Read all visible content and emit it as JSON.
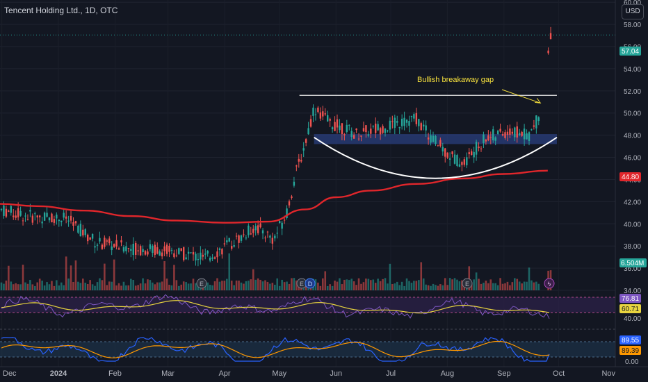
{
  "header": {
    "title": "Tencent Holding Ltd., 1D, OTC",
    "currency": "USD"
  },
  "annotation": {
    "text": "Bullish breakaway gap"
  },
  "price_axis": {
    "ticks": [
      "60.00",
      "58.00",
      "56.00",
      "54.00",
      "52.00",
      "50.00",
      "48.00",
      "46.00",
      "44.00",
      "42.00",
      "40.00",
      "38.00",
      "36.00",
      "34.00"
    ]
  },
  "time_axis": {
    "labels": [
      "Dec",
      "2024",
      "Feb",
      "Mar",
      "Apr",
      "May",
      "Jun",
      "Jul",
      "Aug",
      "Sep",
      "Oct",
      "Nov"
    ]
  },
  "badges": {
    "price": "57.04",
    "ma": "44.80",
    "volume": "6.504M",
    "rsi": "76.81",
    "rsi_ma": "60.71",
    "rsi_level": "40.00",
    "stoch_k": "89.55",
    "stoch_d": "89.39",
    "stoch_level": "0.00"
  },
  "colors": {
    "background": "#131722",
    "up": "#26a69a",
    "down": "#ef5350",
    "ma": "#e0262b",
    "annotation": "#f7e13d",
    "zone": "#2a3f7d",
    "rsi_line": "#7e57c2",
    "rsi_ma": "#e8d43f",
    "stoch_k": "#2962ff",
    "stoch_d": "#ff9800"
  },
  "chart_data": [
    {
      "type": "candlestick",
      "title": "Tencent Holding Ltd., 1D, OTC",
      "ylim": [
        33.5,
        60.2
      ],
      "x_range": [
        "2023-11-30",
        "2024-11-01"
      ],
      "overlays": [
        "moving average (red)",
        "resistance line 51.6",
        "support zone 47.2-48.1",
        "rounded bottom arc"
      ],
      "ma": [
        {
          "date": "2023-11-30",
          "value": 41.8
        },
        {
          "date": "2023-12-20",
          "value": 41.6
        },
        {
          "date": "2024-01-15",
          "value": 41.2
        },
        {
          "date": "2024-02-10",
          "value": 40.7
        },
        {
          "date": "2024-03-05",
          "value": 40.3
        },
        {
          "date": "2024-04-01",
          "value": 40.1
        },
        {
          "date": "2024-04-25",
          "value": 40.2
        },
        {
          "date": "2024-05-15",
          "value": 41.3
        },
        {
          "date": "2024-06-01",
          "value": 42.4
        },
        {
          "date": "2024-06-20",
          "value": 43.0
        },
        {
          "date": "2024-07-15",
          "value": 43.6
        },
        {
          "date": "2024-08-10",
          "value": 44.1
        },
        {
          "date": "2024-09-01",
          "value": 44.5
        },
        {
          "date": "2024-09-25",
          "value": 44.8
        }
      ],
      "price_path": [
        {
          "date": "2023-11-30",
          "value": 41.3
        },
        {
          "date": "2023-12-15",
          "value": 40.7
        },
        {
          "date": "2024-01-05",
          "value": 40.5
        },
        {
          "date": "2024-01-22",
          "value": 38.3
        },
        {
          "date": "2024-02-10",
          "value": 37.8
        },
        {
          "date": "2024-03-01",
          "value": 37.6
        },
        {
          "date": "2024-03-22",
          "value": 36.9
        },
        {
          "date": "2024-04-10",
          "value": 38.8
        },
        {
          "date": "2024-04-18",
          "value": 39.8
        },
        {
          "date": "2024-04-28",
          "value": 38.6
        },
        {
          "date": "2024-05-05",
          "value": 41.0
        },
        {
          "date": "2024-05-10",
          "value": 44.5
        },
        {
          "date": "2024-05-15",
          "value": 47.2
        },
        {
          "date": "2024-05-20",
          "value": 50.5
        },
        {
          "date": "2024-05-28",
          "value": 49.2
        },
        {
          "date": "2024-06-12",
          "value": 48.1
        },
        {
          "date": "2024-07-01",
          "value": 48.9
        },
        {
          "date": "2024-07-15",
          "value": 49.5
        },
        {
          "date": "2024-07-22",
          "value": 48.0
        },
        {
          "date": "2024-08-02",
          "value": 46.2
        },
        {
          "date": "2024-08-10",
          "value": 45.5
        },
        {
          "date": "2024-08-22",
          "value": 47.8
        },
        {
          "date": "2024-09-05",
          "value": 48.3
        },
        {
          "date": "2024-09-15",
          "value": 48.0
        },
        {
          "date": "2024-09-20",
          "value": 49.6
        },
        {
          "date": "2024-09-23",
          "value": 52.5
        },
        {
          "date": "2024-09-26",
          "value": 56.6
        },
        {
          "date": "2024-09-27",
          "value": 57.04
        }
      ],
      "resistance": 51.6,
      "zone": [
        47.2,
        48.1
      ],
      "last_price": 57.04,
      "ma_last": 44.8
    },
    {
      "type": "bar",
      "title": "Volume",
      "last_value": "6.504M"
    },
    {
      "type": "line",
      "title": "RSI",
      "series": [
        {
          "name": "RSI",
          "last": 76.81
        },
        {
          "name": "RSI MA",
          "last": 60.71
        }
      ]
    },
    {
      "type": "line",
      "title": "Stochastic",
      "series": [
        {
          "name": "%K",
          "last": 89.55
        },
        {
          "name": "%D",
          "last": 89.39
        }
      ]
    }
  ]
}
